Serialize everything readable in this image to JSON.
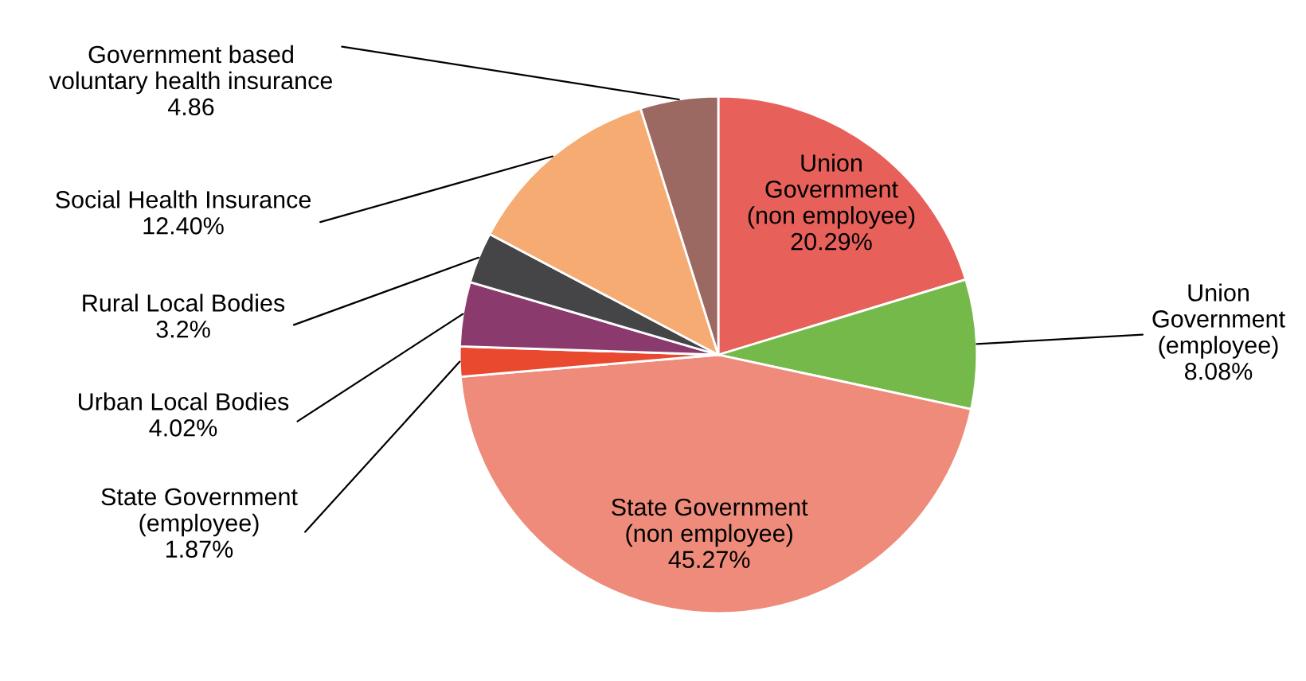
{
  "chart_data": {
    "type": "pie",
    "categories": [
      "Union\nGovernment\n(non employee)",
      "Union\nGovernment\n(employee)",
      "State Government\n(non employee)",
      "State Government\n(employee)",
      "Urban Local Bodies",
      "Rural Local Bodies",
      "Social Health Insurance",
      "Government based\nvoluntary health insurance"
    ],
    "values": [
      20.29,
      8.08,
      45.27,
      1.87,
      4.02,
      3.2,
      12.4,
      4.86
    ],
    "colors": [
      "#e8605a",
      "#76b94b",
      "#ee8b7a",
      "#e9492f",
      "#8b3a6e",
      "#454547",
      "#f5ab72",
      "#9b6862"
    ],
    "value_labels": [
      "20.29%",
      "8.08%",
      "45.27%",
      "1.87%",
      "4.02%",
      "3.2%",
      "12.40%",
      "4.86"
    ]
  }
}
